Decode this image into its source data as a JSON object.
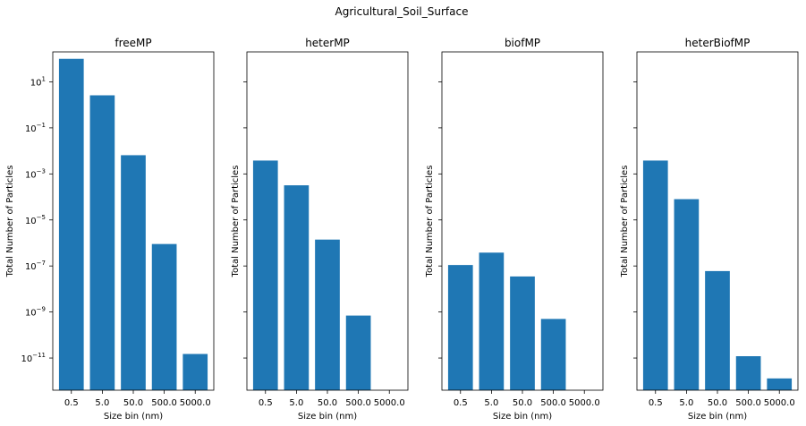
{
  "figure_title": "Agricultural_Soil_Surface",
  "colors": {
    "bar": "#1f77b4",
    "axis": "#000000",
    "background": "#ffffff"
  },
  "chart_data": [
    {
      "type": "bar",
      "title": "freeMP",
      "categories": [
        "0.5",
        "5.0",
        "50.0",
        "500.0",
        "5000.0"
      ],
      "values": [
        100,
        2.6,
        0.0065,
        9e-07,
        1.5e-11
      ],
      "xlabel": "Size bin (nm)",
      "ylabel": "Total Number of Particles",
      "yscale": "log",
      "ylim": [
        4e-13,
        200
      ],
      "yticks": [
        {
          "value": 10.0,
          "base": "10",
          "exp": "1"
        },
        {
          "value": 0.1,
          "base": "10",
          "exp": "−1"
        },
        {
          "value": 0.001,
          "base": "10",
          "exp": "−3"
        },
        {
          "value": 1e-05,
          "base": "10",
          "exp": "−5"
        },
        {
          "value": 1e-07,
          "base": "10",
          "exp": "−7"
        },
        {
          "value": 1e-09,
          "base": "10",
          "exp": "−9"
        },
        {
          "value": 1e-11,
          "base": "10",
          "exp": "−11"
        }
      ],
      "show_ytick_labels": true,
      "grid": false
    },
    {
      "type": "bar",
      "title": "heterMP",
      "categories": [
        "0.5",
        "5.0",
        "50.0",
        "500.0",
        "5000.0"
      ],
      "values": [
        0.0038,
        0.00032,
        1.4e-06,
        7e-10,
        0
      ],
      "xlabel": "Size bin (nm)",
      "ylabel": "Total Number of Particles",
      "yscale": "log",
      "ylim": [
        4e-13,
        200
      ],
      "show_ytick_labels": false,
      "grid": false
    },
    {
      "type": "bar",
      "title": "biofMP",
      "categories": [
        "0.5",
        "5.0",
        "50.0",
        "500.0",
        "5000.0"
      ],
      "values": [
        1.1e-07,
        3.8e-07,
        3.5e-08,
        5e-10,
        0
      ],
      "xlabel": "Size bin (nm)",
      "ylabel": "Total Number of Particles",
      "yscale": "log",
      "ylim": [
        4e-13,
        200
      ],
      "show_ytick_labels": false,
      "grid": false
    },
    {
      "type": "bar",
      "title": "heterBiofMP",
      "categories": [
        "0.5",
        "5.0",
        "50.0",
        "500.0",
        "5000.0"
      ],
      "values": [
        0.0038,
        8e-05,
        6e-08,
        1.2e-11,
        1.3e-12
      ],
      "xlabel": "Size bin (nm)",
      "ylabel": "Total Number of Particles",
      "yscale": "log",
      "ylim": [
        4e-13,
        200
      ],
      "show_ytick_labels": false,
      "grid": false
    }
  ]
}
